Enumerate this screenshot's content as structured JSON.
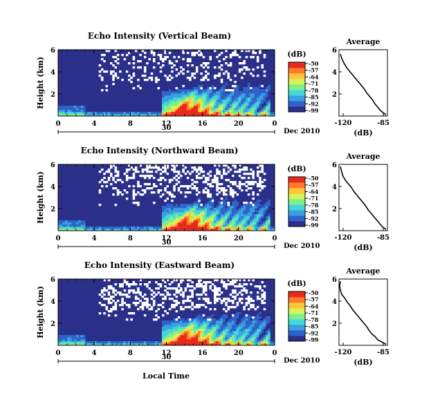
{
  "figure": {
    "date_label": "Dec 2010",
    "xlabel_bottom": "Local Time",
    "ylabel": "Height (km)",
    "colorbar_label": "(dB)",
    "avg_title": "Average",
    "avg_xlabel": "(dB)",
    "date_tick_label": "30"
  },
  "colorbar": {
    "tick_labels": [
      "-50",
      "-57",
      "-64",
      "-71",
      "-78",
      "-85",
      "-92",
      "-99"
    ],
    "range": [
      -99,
      -50
    ],
    "colors": [
      "#2a2f8a",
      "#2f63c9",
      "#3aa0e0",
      "#46d8d8",
      "#7ff08a",
      "#d8f25a",
      "#ffc43a",
      "#ff7a2a",
      "#e82a1e"
    ]
  },
  "chart_data": [
    {
      "type": "heatmap",
      "title": "Echo Intensity (Vertical Beam)",
      "xlabel": "Local Time",
      "ylabel": "Height (km)",
      "x_range": [
        0,
        24
      ],
      "x_ticks": [
        "0",
        "4",
        "8",
        "12",
        "16",
        "20",
        "0"
      ],
      "y_range": [
        0,
        6
      ],
      "y_ticks": [
        "2",
        "4",
        "6"
      ],
      "value_range": [
        -99,
        -50
      ],
      "date": "30 Dec 2010",
      "average_profile": {
        "title": "Average",
        "xlabel": "(dB)",
        "x_range": [
          -120,
          -85
        ],
        "x_ticks": [
          "-120",
          "-85"
        ],
        "y_ticks": [
          "2",
          "4",
          "6"
        ],
        "x": [
          -119,
          -118,
          -116,
          -114,
          -112,
          -110,
          -108,
          -106,
          -104,
          -102,
          -100,
          -98,
          -96,
          -94,
          -92,
          -90,
          -88,
          -86
        ],
        "y": [
          5.6,
          5.2,
          4.7,
          4.3,
          4.0,
          3.7,
          3.4,
          3.1,
          2.8,
          2.5,
          2.1,
          1.8,
          1.5,
          1.1,
          0.8,
          0.5,
          0.3,
          0.1
        ]
      }
    },
    {
      "type": "heatmap",
      "title": "Echo Intensity (Northward Beam)",
      "xlabel": "Local Time",
      "ylabel": "Height (km)",
      "x_range": [
        0,
        24
      ],
      "x_ticks": [
        "0",
        "4",
        "8",
        "12",
        "16",
        "20",
        "0"
      ],
      "y_range": [
        0,
        6
      ],
      "y_ticks": [
        "2",
        "4",
        "6"
      ],
      "value_range": [
        -99,
        -50
      ],
      "date": "30 Dec 2010",
      "average_profile": {
        "title": "Average",
        "xlabel": "(dB)",
        "x_range": [
          -120,
          -85
        ],
        "x_ticks": [
          "-120",
          "-85"
        ],
        "y_ticks": [
          "2",
          "4",
          "6"
        ],
        "x": [
          -119,
          -118,
          -117,
          -115,
          -113,
          -111,
          -109,
          -107,
          -105,
          -103,
          -101,
          -99,
          -97,
          -95,
          -93,
          -91,
          -89,
          -86
        ],
        "y": [
          5.8,
          5.3,
          4.9,
          4.5,
          4.2,
          3.9,
          3.5,
          3.2,
          2.9,
          2.6,
          2.3,
          1.9,
          1.6,
          1.3,
          1.0,
          0.7,
          0.4,
          0.1
        ]
      }
    },
    {
      "type": "heatmap",
      "title": "Echo Intensity (Eastward Beam)",
      "xlabel": "Local Time",
      "ylabel": "Height (km)",
      "x_range": [
        0,
        24
      ],
      "x_ticks": [
        "0",
        "4",
        "8",
        "12",
        "16",
        "20",
        "0"
      ],
      "y_range": [
        0,
        6
      ],
      "y_ticks": [
        "2",
        "4",
        "6"
      ],
      "value_range": [
        -99,
        -50
      ],
      "date": "30 Dec 2010",
      "average_profile": {
        "title": "Average",
        "xlabel": "(dB)",
        "x_range": [
          -120,
          -85
        ],
        "x_ticks": [
          "-120",
          "-85"
        ],
        "y_ticks": [
          "2",
          "4",
          "6"
        ],
        "x": [
          -119,
          -120,
          -119,
          -118,
          -116,
          -114,
          -112,
          -110,
          -108,
          -106,
          -104,
          -102,
          -100,
          -98,
          -96,
          -94,
          -92,
          -89,
          -86
        ],
        "y": [
          5.8,
          5.4,
          5.0,
          4.6,
          4.3,
          3.9,
          3.6,
          3.2,
          2.9,
          2.6,
          2.3,
          2.0,
          1.7,
          1.3,
          1.0,
          0.8,
          0.5,
          0.3,
          0.1
        ]
      }
    }
  ]
}
